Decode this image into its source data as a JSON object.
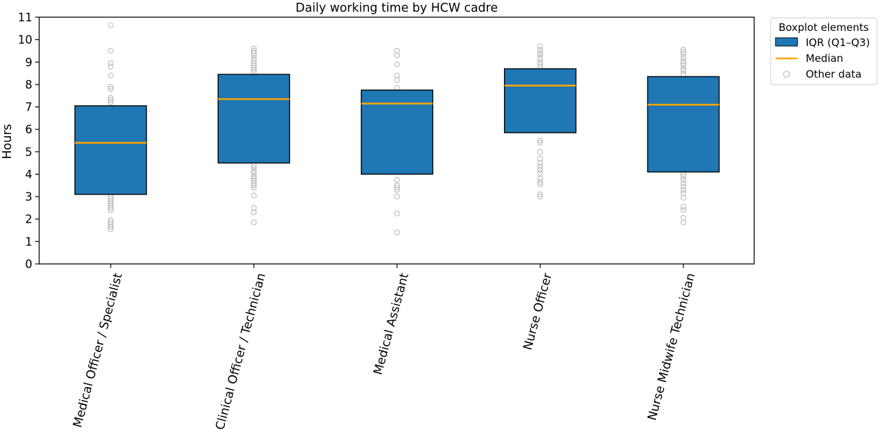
{
  "chart_data": {
    "type": "boxplot",
    "title": "Daily working time by HCW cadre",
    "ylabel": "Hours",
    "xlabel": "",
    "ylim": [
      0,
      11
    ],
    "yticks": [
      0,
      1,
      2,
      3,
      4,
      5,
      6,
      7,
      8,
      9,
      10,
      11
    ],
    "grid": false,
    "categories": [
      "Medical Officer / Specialist",
      "Clinical Officer / Technician",
      "Medical Assistant",
      "Nurse Officer",
      "Nurse Midwife Technician"
    ],
    "boxes": [
      {
        "category": "Medical Officer / Specialist",
        "q1": 3.1,
        "median": 5.4,
        "q3": 7.05,
        "points": [
          1.55,
          1.65,
          1.75,
          1.85,
          1.95,
          2.4,
          2.5,
          2.6,
          2.7,
          2.8,
          2.9,
          3.0,
          7.2,
          7.3,
          7.4,
          7.8,
          7.9,
          8.4,
          8.8,
          8.95,
          9.5,
          10.65
        ]
      },
      {
        "category": "Clinical Officer / Technician",
        "q1": 4.5,
        "median": 7.35,
        "q3": 8.45,
        "points": [
          1.85,
          2.3,
          2.5,
          3.05,
          3.4,
          3.5,
          3.6,
          3.7,
          3.8,
          3.9,
          4.05,
          4.15,
          4.3,
          4.4,
          8.55,
          8.65,
          8.75,
          8.85,
          8.95,
          9.05,
          9.15,
          9.3,
          9.4,
          9.5,
          9.6
        ]
      },
      {
        "category": "Medical Assistant",
        "q1": 4.0,
        "median": 7.15,
        "q3": 7.75,
        "points": [
          1.4,
          2.25,
          3.0,
          3.3,
          3.4,
          3.5,
          3.75,
          7.85,
          8.2,
          8.4,
          8.9,
          9.3,
          9.5
        ]
      },
      {
        "category": "Nurse Officer",
        "q1": 5.85,
        "median": 7.95,
        "q3": 8.7,
        "points": [
          3.0,
          3.1,
          3.55,
          3.65,
          3.8,
          4.05,
          4.2,
          4.35,
          4.5,
          4.7,
          5.0,
          5.4,
          5.5,
          8.8,
          8.9,
          9.0,
          9.15,
          9.3,
          9.4,
          9.55,
          9.7
        ]
      },
      {
        "category": "Nurse Midwife Technician",
        "q1": 4.1,
        "median": 7.1,
        "q3": 8.35,
        "points": [
          1.85,
          2.05,
          2.4,
          2.55,
          2.95,
          3.15,
          3.3,
          3.45,
          3.6,
          3.75,
          3.9,
          4.0,
          8.45,
          8.6,
          8.7,
          8.85,
          8.95,
          9.05,
          9.2,
          9.35,
          9.45,
          9.55
        ]
      }
    ],
    "legend": {
      "title": "Boxplot elements",
      "placement": "outside-top-right",
      "entries": [
        "IQR (Q1–Q3)",
        "Median",
        "Other data"
      ]
    },
    "colors": {
      "box_fill": "#1f77b4",
      "box_edge": "#000000",
      "median": "#ffa500",
      "points": "#bfbfbf"
    }
  }
}
